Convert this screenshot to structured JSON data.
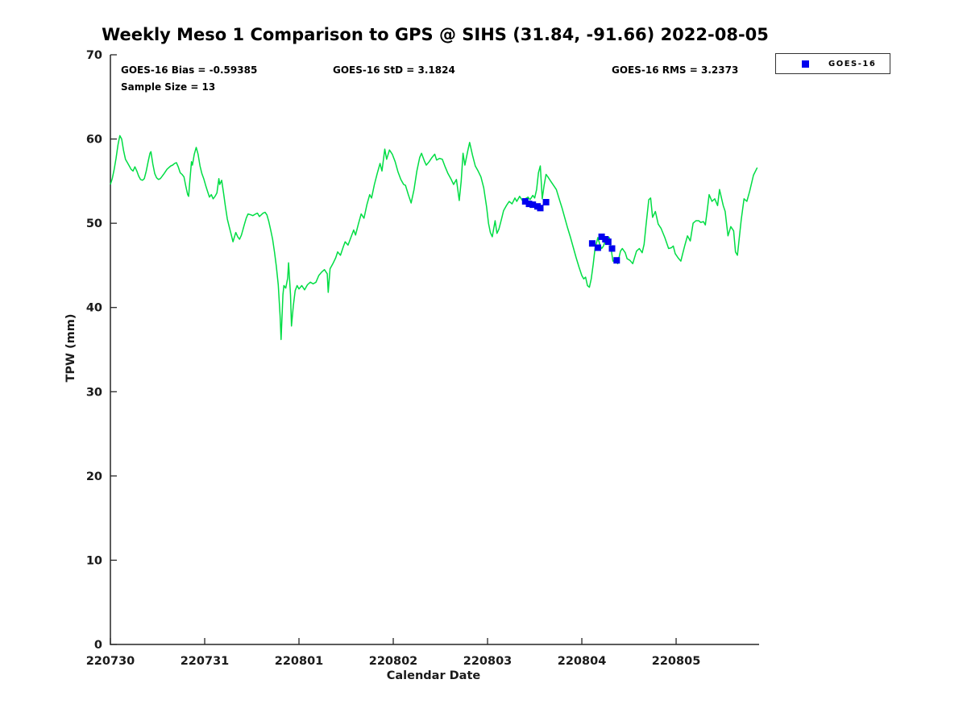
{
  "title": "Weekly Meso 1 Comparison to GPS @ SIHS (31.84, -91.66) 2022-08-05",
  "annotations": {
    "bias": "GOES-16 Bias = -0.59385",
    "std": "GOES-16 StD = 3.1824",
    "rms": "GOES-16 RMS = 3.2373",
    "sample_size": "Sample Size = 13"
  },
  "legend": {
    "entries": [
      {
        "label": "GOES-16",
        "marker": "square",
        "color": "#0000ee"
      }
    ]
  },
  "chart_data": {
    "type": "line",
    "title": "Weekly Meso 1 Comparison to GPS @ SIHS (31.84, -91.66) 2022-08-05",
    "xlabel": "Calendar Date",
    "ylabel": "TPW (mm)",
    "xlim": [
      0,
      6.88
    ],
    "ylim": [
      0,
      70
    ],
    "grid": false,
    "legend_position": "top-right",
    "x_ticks": [
      {
        "pos": 0,
        "label": "220730"
      },
      {
        "pos": 1,
        "label": "220731"
      },
      {
        "pos": 2,
        "label": "220801"
      },
      {
        "pos": 3,
        "label": "220802"
      },
      {
        "pos": 4,
        "label": "220803"
      },
      {
        "pos": 5,
        "label": "220804"
      },
      {
        "pos": 6,
        "label": "220805"
      }
    ],
    "y_ticks": [
      0,
      10,
      20,
      30,
      40,
      50,
      60,
      70
    ],
    "stats": {
      "bias": -0.59385,
      "std": 3.1824,
      "rms": 3.2373,
      "sample_size": 13
    },
    "series": [
      {
        "name": "GPS",
        "type": "line",
        "color": "#00dd44",
        "points": [
          [
            0.0,
            54.6
          ],
          [
            0.02,
            55.3
          ],
          [
            0.04,
            56.4
          ],
          [
            0.06,
            57.7
          ],
          [
            0.08,
            59.3
          ],
          [
            0.1,
            60.4
          ],
          [
            0.12,
            60.0
          ],
          [
            0.14,
            58.6
          ],
          [
            0.16,
            57.6
          ],
          [
            0.18,
            57.2
          ],
          [
            0.2,
            56.8
          ],
          [
            0.22,
            56.4
          ],
          [
            0.24,
            56.2
          ],
          [
            0.26,
            56.7
          ],
          [
            0.28,
            56.2
          ],
          [
            0.3,
            55.6
          ],
          [
            0.32,
            55.2
          ],
          [
            0.34,
            55.1
          ],
          [
            0.36,
            55.3
          ],
          [
            0.38,
            56.2
          ],
          [
            0.4,
            57.3
          ],
          [
            0.42,
            58.3
          ],
          [
            0.43,
            58.5
          ],
          [
            0.45,
            57.0
          ],
          [
            0.47,
            55.9
          ],
          [
            0.49,
            55.4
          ],
          [
            0.51,
            55.2
          ],
          [
            0.53,
            55.3
          ],
          [
            0.55,
            55.6
          ],
          [
            0.57,
            55.9
          ],
          [
            0.6,
            56.4
          ],
          [
            0.62,
            56.6
          ],
          [
            0.64,
            56.8
          ],
          [
            0.66,
            56.9
          ],
          [
            0.68,
            57.1
          ],
          [
            0.7,
            57.2
          ],
          [
            0.72,
            56.7
          ],
          [
            0.74,
            56.0
          ],
          [
            0.76,
            55.8
          ],
          [
            0.78,
            55.5
          ],
          [
            0.8,
            54.4
          ],
          [
            0.82,
            53.4
          ],
          [
            0.83,
            53.2
          ],
          [
            0.84,
            54.7
          ],
          [
            0.86,
            57.3
          ],
          [
            0.87,
            56.9
          ],
          [
            0.89,
            58.2
          ],
          [
            0.91,
            59.0
          ],
          [
            0.93,
            58.2
          ],
          [
            0.95,
            56.8
          ],
          [
            0.97,
            55.9
          ],
          [
            0.99,
            55.3
          ],
          [
            1.01,
            54.5
          ],
          [
            1.03,
            53.8
          ],
          [
            1.05,
            53.1
          ],
          [
            1.07,
            53.4
          ],
          [
            1.09,
            52.9
          ],
          [
            1.11,
            53.2
          ],
          [
            1.13,
            53.6
          ],
          [
            1.15,
            55.3
          ],
          [
            1.16,
            54.6
          ],
          [
            1.18,
            55.1
          ],
          [
            1.2,
            53.6
          ],
          [
            1.22,
            52.0
          ],
          [
            1.24,
            50.5
          ],
          [
            1.26,
            49.6
          ],
          [
            1.28,
            48.7
          ],
          [
            1.3,
            47.8
          ],
          [
            1.33,
            48.9
          ],
          [
            1.35,
            48.4
          ],
          [
            1.37,
            48.1
          ],
          [
            1.39,
            48.6
          ],
          [
            1.42,
            49.8
          ],
          [
            1.44,
            50.6
          ],
          [
            1.46,
            51.1
          ],
          [
            1.49,
            51.0
          ],
          [
            1.51,
            50.9
          ],
          [
            1.54,
            51.1
          ],
          [
            1.56,
            51.2
          ],
          [
            1.58,
            50.8
          ],
          [
            1.6,
            51.0
          ],
          [
            1.62,
            51.2
          ],
          [
            1.64,
            51.3
          ],
          [
            1.66,
            51.0
          ],
          [
            1.68,
            50.2
          ],
          [
            1.7,
            49.2
          ],
          [
            1.72,
            48.1
          ],
          [
            1.74,
            46.6
          ],
          [
            1.76,
            44.9
          ],
          [
            1.78,
            42.7
          ],
          [
            1.8,
            39.0
          ],
          [
            1.81,
            36.2
          ],
          [
            1.83,
            41.5
          ],
          [
            1.84,
            42.6
          ],
          [
            1.86,
            42.3
          ],
          [
            1.88,
            43.5
          ],
          [
            1.89,
            45.3
          ],
          [
            1.91,
            41.5
          ],
          [
            1.92,
            37.8
          ],
          [
            1.94,
            40.2
          ],
          [
            1.96,
            42.0
          ],
          [
            1.98,
            42.6
          ],
          [
            2.0,
            42.2
          ],
          [
            2.03,
            42.6
          ],
          [
            2.06,
            42.1
          ],
          [
            2.09,
            42.7
          ],
          [
            2.12,
            43.0
          ],
          [
            2.15,
            42.8
          ],
          [
            2.18,
            43.0
          ],
          [
            2.21,
            43.8
          ],
          [
            2.24,
            44.2
          ],
          [
            2.27,
            44.5
          ],
          [
            2.3,
            44.0
          ],
          [
            2.31,
            41.8
          ],
          [
            2.33,
            44.6
          ],
          [
            2.36,
            45.2
          ],
          [
            2.39,
            45.9
          ],
          [
            2.41,
            46.6
          ],
          [
            2.44,
            46.2
          ],
          [
            2.47,
            47.2
          ],
          [
            2.49,
            47.8
          ],
          [
            2.52,
            47.4
          ],
          [
            2.55,
            48.3
          ],
          [
            2.58,
            49.2
          ],
          [
            2.6,
            48.6
          ],
          [
            2.63,
            49.9
          ],
          [
            2.66,
            51.1
          ],
          [
            2.69,
            50.6
          ],
          [
            2.72,
            52.2
          ],
          [
            2.75,
            53.4
          ],
          [
            2.77,
            53.0
          ],
          [
            2.8,
            54.6
          ],
          [
            2.83,
            55.9
          ],
          [
            2.86,
            57.1
          ],
          [
            2.88,
            56.2
          ],
          [
            2.91,
            58.8
          ],
          [
            2.93,
            57.6
          ],
          [
            2.96,
            58.7
          ],
          [
            2.99,
            58.2
          ],
          [
            3.02,
            57.3
          ],
          [
            3.05,
            56.1
          ],
          [
            3.08,
            55.2
          ],
          [
            3.11,
            54.6
          ],
          [
            3.13,
            54.5
          ],
          [
            3.16,
            53.4
          ],
          [
            3.19,
            52.4
          ],
          [
            3.22,
            54.0
          ],
          [
            3.25,
            56.2
          ],
          [
            3.28,
            57.8
          ],
          [
            3.3,
            58.3
          ],
          [
            3.33,
            57.4
          ],
          [
            3.35,
            56.9
          ],
          [
            3.38,
            57.3
          ],
          [
            3.41,
            57.8
          ],
          [
            3.44,
            58.2
          ],
          [
            3.46,
            57.5
          ],
          [
            3.49,
            57.7
          ],
          [
            3.52,
            57.6
          ],
          [
            3.55,
            56.7
          ],
          [
            3.58,
            55.9
          ],
          [
            3.61,
            55.3
          ],
          [
            3.64,
            54.6
          ],
          [
            3.67,
            55.2
          ],
          [
            3.7,
            52.7
          ],
          [
            3.72,
            55.0
          ],
          [
            3.74,
            58.3
          ],
          [
            3.76,
            56.9
          ],
          [
            3.79,
            58.6
          ],
          [
            3.81,
            59.6
          ],
          [
            3.84,
            58.1
          ],
          [
            3.87,
            56.8
          ],
          [
            3.9,
            56.2
          ],
          [
            3.93,
            55.5
          ],
          [
            3.96,
            54.2
          ],
          [
            3.99,
            51.9
          ],
          [
            4.01,
            50.0
          ],
          [
            4.03,
            48.9
          ],
          [
            4.05,
            48.4
          ],
          [
            4.08,
            50.3
          ],
          [
            4.1,
            48.8
          ],
          [
            4.12,
            49.3
          ],
          [
            4.15,
            50.6
          ],
          [
            4.17,
            51.5
          ],
          [
            4.2,
            52.1
          ],
          [
            4.23,
            52.6
          ],
          [
            4.26,
            52.3
          ],
          [
            4.29,
            53.0
          ],
          [
            4.31,
            52.6
          ],
          [
            4.34,
            53.2
          ],
          [
            4.37,
            52.7
          ],
          [
            4.4,
            52.9
          ],
          [
            4.43,
            53.1
          ],
          [
            4.45,
            52.8
          ],
          [
            4.48,
            53.3
          ],
          [
            4.5,
            53.0
          ],
          [
            4.52,
            54.0
          ],
          [
            4.54,
            56.0
          ],
          [
            4.56,
            56.8
          ],
          [
            4.58,
            52.9
          ],
          [
            4.6,
            54.5
          ],
          [
            4.62,
            55.8
          ],
          [
            4.64,
            55.5
          ],
          [
            4.67,
            55.0
          ],
          [
            4.7,
            54.5
          ],
          [
            4.73,
            54.0
          ],
          [
            4.76,
            52.9
          ],
          [
            4.79,
            51.8
          ],
          [
            4.82,
            50.6
          ],
          [
            4.85,
            49.4
          ],
          [
            4.88,
            48.3
          ],
          [
            4.91,
            47.1
          ],
          [
            4.94,
            45.9
          ],
          [
            4.97,
            44.8
          ],
          [
            5.0,
            43.8
          ],
          [
            5.02,
            43.4
          ],
          [
            5.04,
            43.6
          ],
          [
            5.06,
            42.6
          ],
          [
            5.08,
            42.4
          ],
          [
            5.1,
            43.4
          ],
          [
            5.12,
            45.1
          ],
          [
            5.14,
            47.0
          ],
          [
            5.17,
            48.3
          ],
          [
            5.19,
            47.5
          ],
          [
            5.21,
            47.0
          ],
          [
            5.23,
            47.3
          ],
          [
            5.26,
            48.4
          ],
          [
            5.29,
            48.3
          ],
          [
            5.31,
            47.0
          ],
          [
            5.33,
            45.5
          ],
          [
            5.35,
            45.6
          ],
          [
            5.38,
            45.2
          ],
          [
            5.41,
            46.7
          ],
          [
            5.43,
            47.0
          ],
          [
            5.46,
            46.5
          ],
          [
            5.48,
            45.8
          ],
          [
            5.51,
            45.6
          ],
          [
            5.54,
            45.2
          ],
          [
            5.58,
            46.7
          ],
          [
            5.61,
            47.0
          ],
          [
            5.64,
            46.5
          ],
          [
            5.66,
            47.5
          ],
          [
            5.68,
            49.7
          ],
          [
            5.71,
            52.8
          ],
          [
            5.73,
            53.0
          ],
          [
            5.75,
            50.7
          ],
          [
            5.78,
            51.4
          ],
          [
            5.81,
            49.9
          ],
          [
            5.84,
            49.4
          ],
          [
            5.88,
            48.3
          ],
          [
            5.92,
            47.0
          ],
          [
            5.95,
            47.1
          ],
          [
            5.97,
            47.3
          ],
          [
            5.99,
            46.4
          ],
          [
            6.02,
            45.9
          ],
          [
            6.05,
            45.5
          ],
          [
            6.07,
            46.4
          ],
          [
            6.09,
            47.3
          ],
          [
            6.12,
            48.5
          ],
          [
            6.15,
            47.9
          ],
          [
            6.18,
            50.0
          ],
          [
            6.21,
            50.3
          ],
          [
            6.24,
            50.3
          ],
          [
            6.26,
            50.1
          ],
          [
            6.29,
            50.2
          ],
          [
            6.31,
            49.8
          ],
          [
            6.33,
            51.5
          ],
          [
            6.35,
            53.4
          ],
          [
            6.38,
            52.6
          ],
          [
            6.41,
            52.9
          ],
          [
            6.44,
            52.1
          ],
          [
            6.46,
            54.0
          ],
          [
            6.5,
            52.1
          ],
          [
            6.52,
            51.4
          ],
          [
            6.55,
            48.5
          ],
          [
            6.58,
            49.6
          ],
          [
            6.61,
            49.1
          ],
          [
            6.63,
            46.6
          ],
          [
            6.65,
            46.2
          ],
          [
            6.69,
            50.4
          ],
          [
            6.72,
            52.9
          ],
          [
            6.75,
            52.6
          ],
          [
            6.78,
            53.8
          ],
          [
            6.82,
            55.7
          ],
          [
            6.86,
            56.6
          ]
        ]
      },
      {
        "name": "GOES-16",
        "type": "scatter",
        "marker": "square",
        "color": "#0000ee",
        "points": [
          [
            4.4,
            52.6
          ],
          [
            4.44,
            52.3
          ],
          [
            4.48,
            52.2
          ],
          [
            4.53,
            52.0
          ],
          [
            4.56,
            51.8
          ],
          [
            4.62,
            52.5
          ],
          [
            5.11,
            47.6
          ],
          [
            5.17,
            47.1
          ],
          [
            5.21,
            48.4
          ],
          [
            5.25,
            48.1
          ],
          [
            5.28,
            47.8
          ],
          [
            5.32,
            47.0
          ],
          [
            5.37,
            45.6
          ]
        ]
      }
    ]
  }
}
